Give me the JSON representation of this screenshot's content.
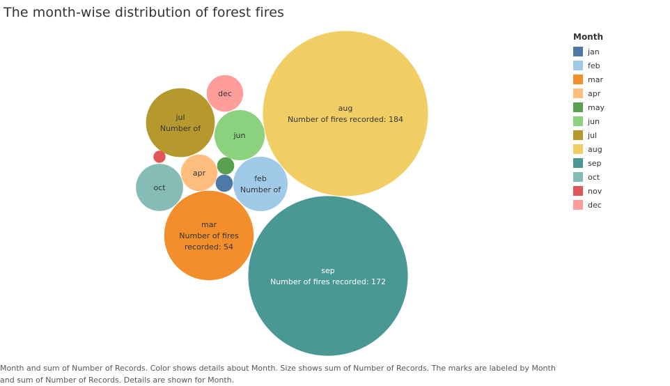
{
  "title": "The month-wise distribution of forest fires",
  "legend": {
    "title": "Month"
  },
  "caption": "Month and sum of Number of Records.  Color shows details about Month.  Size shows sum of Number of Records.  The marks are labeled by Month and sum of Number of Records.  Details are shown for Month.",
  "chart_data": {
    "type": "packed-bubble",
    "size_measure": "Number of fires recorded",
    "series": [
      {
        "month": "jan",
        "value": 2,
        "color": "#4e79a7",
        "label_lines": []
      },
      {
        "month": "feb",
        "value": 20,
        "color": "#a0cbe8",
        "label_lines": [
          "feb",
          "Number of"
        ]
      },
      {
        "month": "mar",
        "value": 54,
        "color": "#f28e2b",
        "label_lines": [
          "mar",
          "Number of fires",
          "recorded: 54"
        ]
      },
      {
        "month": "apr",
        "value": 9,
        "color": "#ffbe7d",
        "label_lines": [
          "apr"
        ]
      },
      {
        "month": "may",
        "value": 2,
        "color": "#59a14f",
        "label_lines": []
      },
      {
        "month": "jun",
        "value": 17,
        "color": "#8cd17d",
        "label_lines": [
          "jun"
        ]
      },
      {
        "month": "jul",
        "value": 32,
        "color": "#b6992d",
        "label_lines": [
          "jul",
          "Number of"
        ]
      },
      {
        "month": "aug",
        "value": 184,
        "color": "#f1ce63",
        "label_lines": [
          "aug",
          "Number of fires recorded: 184"
        ]
      },
      {
        "month": "sep",
        "value": 172,
        "color": "#499894",
        "label_lines": [
          "sep",
          "Number of fires recorded: 172"
        ]
      },
      {
        "month": "oct",
        "value": 15,
        "color": "#86bcb6",
        "label_lines": [
          "oct"
        ]
      },
      {
        "month": "nov",
        "value": 1,
        "color": "#e15759",
        "label_lines": []
      },
      {
        "month": "dec",
        "value": 9,
        "color": "#ff9d9a",
        "label_lines": [
          "dec"
        ]
      }
    ]
  }
}
